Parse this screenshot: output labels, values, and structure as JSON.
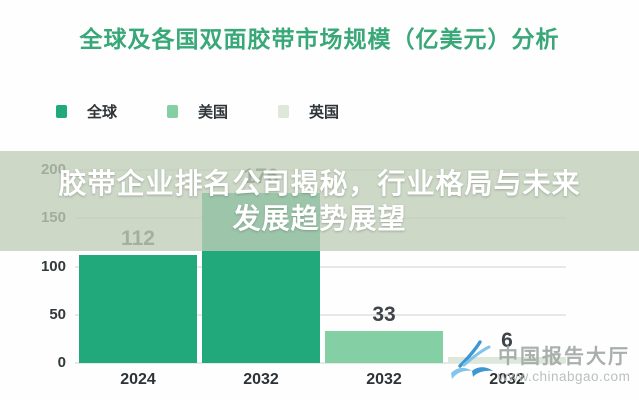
{
  "title": "全球及各国双面胶带市场规模（亿美元）分析",
  "overlay": {
    "line1": "胶带企业排名公司揭秘，行业格局与未来",
    "line2": "发展趋势展望"
  },
  "watermark": {
    "brand": "中国报告大厅",
    "url": "www.chinabgao.com"
  },
  "colors": {
    "title": "#38a878",
    "banner_bg": "rgba(191,205,183,0.78)",
    "grid": "#e6e9e5",
    "axis_text": "#33383b",
    "value_text": "#3f4449",
    "watermark_text": "#a2aaa4",
    "watermark_url": "#b4bbb5",
    "logo_blue_dark": "#2d8fd0",
    "logo_blue_light": "#79c1e8"
  },
  "chart_data": {
    "type": "bar",
    "title": "全球及各国双面胶带市场规模（亿美元）分析",
    "legend": [
      "全球",
      "美国",
      "英国"
    ],
    "legend_position": "top-left",
    "series_colors": [
      "#21a87b",
      "#85cfa4",
      "#dde7da"
    ],
    "categories": [
      "2024",
      "2032",
      "2032",
      "2032"
    ],
    "bars": [
      {
        "series": "全球",
        "category": "2024",
        "value": 112
      },
      {
        "series": "全球",
        "category": "2032",
        "value": 176
      },
      {
        "series": "美国",
        "category": "2032",
        "value": 33
      },
      {
        "series": "英国",
        "category": "2032",
        "value": 6
      }
    ],
    "ylabel": "",
    "ylim": [
      0,
      200
    ],
    "yticks": [
      0,
      50,
      100,
      150,
      200
    ],
    "grid": true
  }
}
